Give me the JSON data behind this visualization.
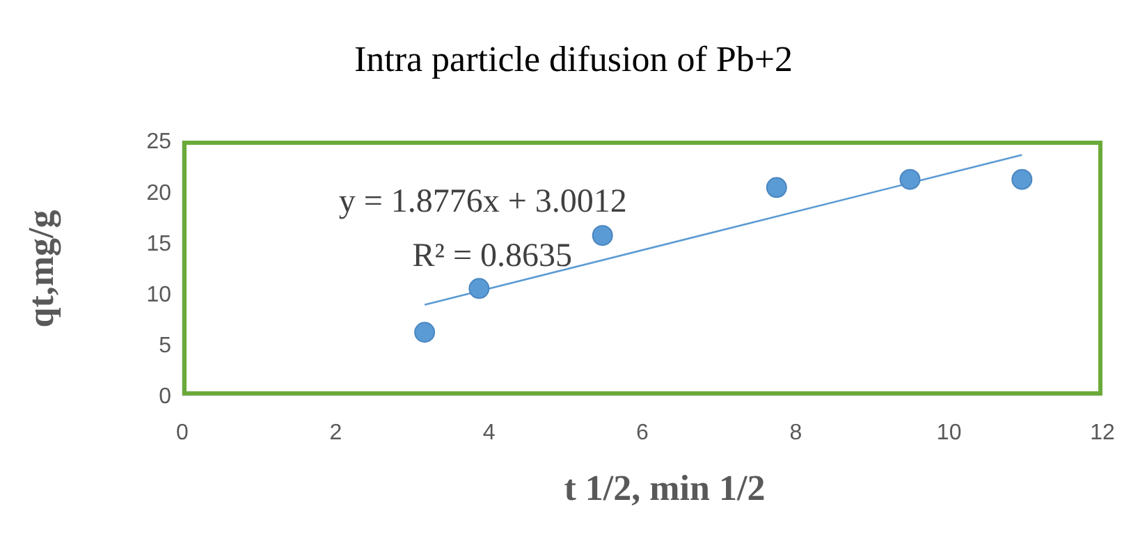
{
  "chart_data": {
    "type": "scatter",
    "title": "Intra particle difusion of Pb+2",
    "xlabel": "t 1/2, min 1/2",
    "ylabel": "qt,mg/g",
    "annotations": [
      "y = 1.8776x + 3.0012",
      "R² = 0.8635"
    ],
    "series": [
      {
        "color": "#5b9bd5",
        "marker": "circle",
        "x": [
          3.16,
          3.87,
          5.48,
          7.75,
          9.49,
          10.95
        ],
        "values": [
          6.2,
          10.5,
          15.7,
          20.4,
          21.2,
          21.2
        ]
      },
      {
        "type": "line",
        "color": "#5b9bd5",
        "x": [
          3.16,
          10.95
        ],
        "values": [
          8.9,
          23.6
        ],
        "marker": "none"
      }
    ],
    "xlim": [
      0,
      12
    ],
    "xticks": [
      0,
      2,
      4,
      6,
      8,
      10,
      12
    ],
    "ylim": [
      0,
      25
    ],
    "yticks": [
      0,
      5,
      10,
      15,
      20,
      25
    ]
  }
}
